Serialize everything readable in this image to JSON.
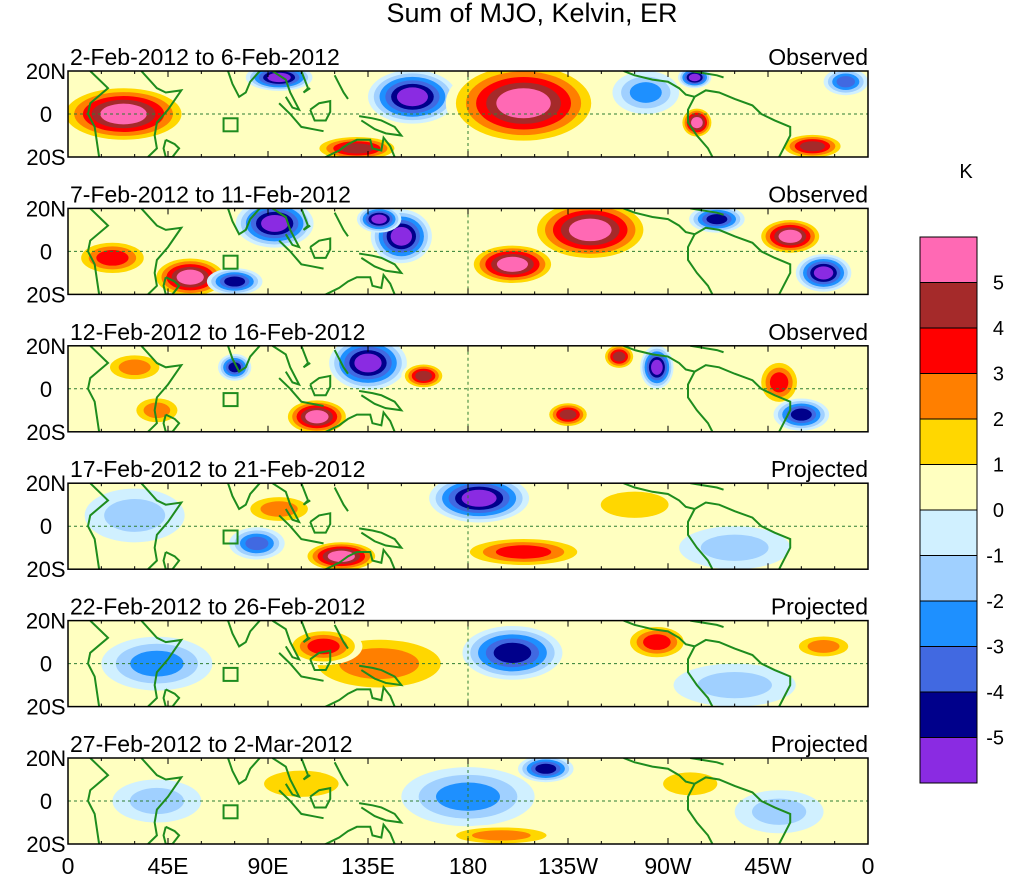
{
  "chart_data": {
    "type": "heatmap",
    "title": "Sum of MJO, Kelvin, ER",
    "xlabel": "",
    "ylabel": "",
    "x_ticks": [
      "0",
      "45E",
      "90E",
      "135E",
      "180",
      "135W",
      "90W",
      "45W",
      "0"
    ],
    "x_range": [
      0,
      360
    ],
    "y_ticks": [
      "20N",
      "0",
      "20S"
    ],
    "y_range": [
      -20,
      20
    ],
    "colorbar": {
      "unit": "K",
      "levels": [
        5,
        4,
        3,
        2,
        1,
        0,
        -1,
        -2,
        -3,
        -4,
        -5
      ],
      "colors": [
        "#ff69b4",
        "#a52a2a",
        "#ff0000",
        "#ff7f00",
        "#ffd700",
        "#ffffc0",
        "#d0f0ff",
        "#a0d0ff",
        "#1e90ff",
        "#4169e1",
        "#00008b",
        "#8a2be2"
      ]
    },
    "panels": [
      {
        "date_range": "2-Feb-2012 to 6-Feb-2012",
        "status": "Observed",
        "features": [
          {
            "lon": 25,
            "lat": 0,
            "rlon": 24,
            "rlat": 11,
            "value": 5
          },
          {
            "lon": 95,
            "lat": 17,
            "rlon": 12,
            "rlat": 5,
            "value": -5
          },
          {
            "lon": 155,
            "lat": 8,
            "rlon": 16,
            "rlat": 10,
            "value": -5
          },
          {
            "lon": 205,
            "lat": 5,
            "rlon": 28,
            "rlat": 16,
            "value": 5
          },
          {
            "lon": 283,
            "lat": -4,
            "rlon": 6,
            "rlat": 6,
            "value": 5
          },
          {
            "lon": 282,
            "lat": 17,
            "rlon": 6,
            "rlat": 4,
            "value": -5
          },
          {
            "lon": 130,
            "lat": -16,
            "rlon": 16,
            "rlat": 5,
            "value": 4
          },
          {
            "lon": 335,
            "lat": -15,
            "rlon": 12,
            "rlat": 5,
            "value": 4
          },
          {
            "lon": 260,
            "lat": 10,
            "rlon": 12,
            "rlat": 8,
            "value": -2
          },
          {
            "lon": 350,
            "lat": 15,
            "rlon": 8,
            "rlat": 5,
            "value": -3
          }
        ]
      },
      {
        "date_range": "7-Feb-2012 to 11-Feb-2012",
        "status": "Observed",
        "features": [
          {
            "lon": 93,
            "lat": 13,
            "rlon": 14,
            "rlat": 9,
            "value": -5
          },
          {
            "lon": 150,
            "lat": 7,
            "rlon": 11,
            "rlat": 10,
            "value": -5
          },
          {
            "lon": 235,
            "lat": 10,
            "rlon": 22,
            "rlat": 12,
            "value": 5
          },
          {
            "lon": 200,
            "lat": -6,
            "rlon": 16,
            "rlat": 8,
            "value": 5
          },
          {
            "lon": 55,
            "lat": -12,
            "rlon": 14,
            "rlat": 8,
            "value": 5
          },
          {
            "lon": 20,
            "lat": -3,
            "rlon": 14,
            "rlat": 7,
            "value": 3
          },
          {
            "lon": 140,
            "lat": 15,
            "rlon": 8,
            "rlat": 5,
            "value": -5
          },
          {
            "lon": 325,
            "lat": 7,
            "rlon": 12,
            "rlat": 7,
            "value": 5
          },
          {
            "lon": 340,
            "lat": -10,
            "rlon": 10,
            "rlat": 7,
            "value": -5
          },
          {
            "lon": 75,
            "lat": -14,
            "rlon": 10,
            "rlat": 5,
            "value": -4
          },
          {
            "lon": 292,
            "lat": 15,
            "rlon": 10,
            "rlat": 5,
            "value": -4
          }
        ]
      },
      {
        "date_range": "12-Feb-2012 to 16-Feb-2012",
        "status": "Observed",
        "features": [
          {
            "lon": 135,
            "lat": 12,
            "rlon": 14,
            "rlat": 10,
            "value": -5
          },
          {
            "lon": 112,
            "lat": -13,
            "rlon": 12,
            "rlat": 7,
            "value": 5
          },
          {
            "lon": 320,
            "lat": 3,
            "rlon": 8,
            "rlat": 9,
            "value": 3
          },
          {
            "lon": 265,
            "lat": 10,
            "rlon": 6,
            "rlat": 8,
            "value": -5
          },
          {
            "lon": 225,
            "lat": -12,
            "rlon": 8,
            "rlat": 5,
            "value": 4
          },
          {
            "lon": 160,
            "lat": 6,
            "rlon": 8,
            "rlat": 5,
            "value": 4
          },
          {
            "lon": 30,
            "lat": 10,
            "rlon": 12,
            "rlat": 6,
            "value": 2
          },
          {
            "lon": 40,
            "lat": -10,
            "rlon": 10,
            "rlat": 6,
            "value": 2
          },
          {
            "lon": 330,
            "lat": -12,
            "rlon": 10,
            "rlat": 6,
            "value": -4
          },
          {
            "lon": 248,
            "lat": 15,
            "rlon": 6,
            "rlat": 5,
            "value": 4
          },
          {
            "lon": 75,
            "lat": 10,
            "rlon": 6,
            "rlat": 5,
            "value": -4
          }
        ]
      },
      {
        "date_range": "17-Feb-2012 to 21-Feb-2012",
        "status": "Projected",
        "features": [
          {
            "lon": 185,
            "lat": 13,
            "rlon": 18,
            "rlat": 9,
            "value": -5
          },
          {
            "lon": 123,
            "lat": -14,
            "rlon": 14,
            "rlat": 6,
            "value": 5
          },
          {
            "lon": 205,
            "lat": -12,
            "rlon": 24,
            "rlat": 6,
            "value": 3
          },
          {
            "lon": 85,
            "lat": -8,
            "rlon": 10,
            "rlat": 6,
            "value": -3
          },
          {
            "lon": 95,
            "lat": 8,
            "rlon": 14,
            "rlat": 6,
            "value": 2
          },
          {
            "lon": 255,
            "lat": 10,
            "rlon": 20,
            "rlat": 8,
            "value": 1
          },
          {
            "lon": 30,
            "lat": 5,
            "rlon": 18,
            "rlat": 10,
            "value": -1
          },
          {
            "lon": 300,
            "lat": -10,
            "rlon": 20,
            "rlat": 8,
            "value": -1
          }
        ]
      },
      {
        "date_range": "22-Feb-2012 to 26-Feb-2012",
        "status": "Projected",
        "features": [
          {
            "lon": 200,
            "lat": 5,
            "rlon": 18,
            "rlat": 10,
            "value": -4
          },
          {
            "lon": 140,
            "lat": 0,
            "rlon": 30,
            "rlat": 12,
            "value": 2
          },
          {
            "lon": 265,
            "lat": 10,
            "rlon": 12,
            "rlat": 7,
            "value": 3
          },
          {
            "lon": 40,
            "lat": 0,
            "rlon": 20,
            "rlat": 10,
            "value": -2
          },
          {
            "lon": 115,
            "lat": 8,
            "rlon": 14,
            "rlat": 7,
            "value": 3
          },
          {
            "lon": 340,
            "lat": 8,
            "rlon": 12,
            "rlat": 5,
            "value": 2
          },
          {
            "lon": 300,
            "lat": -10,
            "rlon": 22,
            "rlat": 8,
            "value": -1
          }
        ]
      },
      {
        "date_range": "27-Feb-2012 to 2-Mar-2012",
        "status": "Projected",
        "features": [
          {
            "lon": 215,
            "lat": 15,
            "rlon": 10,
            "rlat": 5,
            "value": -4
          },
          {
            "lon": 180,
            "lat": 2,
            "rlon": 24,
            "rlat": 11,
            "value": -2
          },
          {
            "lon": 105,
            "lat": 8,
            "rlon": 22,
            "rlat": 8,
            "value": 1
          },
          {
            "lon": 195,
            "lat": -16,
            "rlon": 22,
            "rlat": 4,
            "value": 2
          },
          {
            "lon": 280,
            "lat": 8,
            "rlon": 16,
            "rlat": 7,
            "value": 1
          },
          {
            "lon": 40,
            "lat": 0,
            "rlon": 16,
            "rlat": 8,
            "value": -1
          },
          {
            "lon": 320,
            "lat": -5,
            "rlon": 16,
            "rlat": 8,
            "value": -1
          }
        ]
      }
    ]
  }
}
